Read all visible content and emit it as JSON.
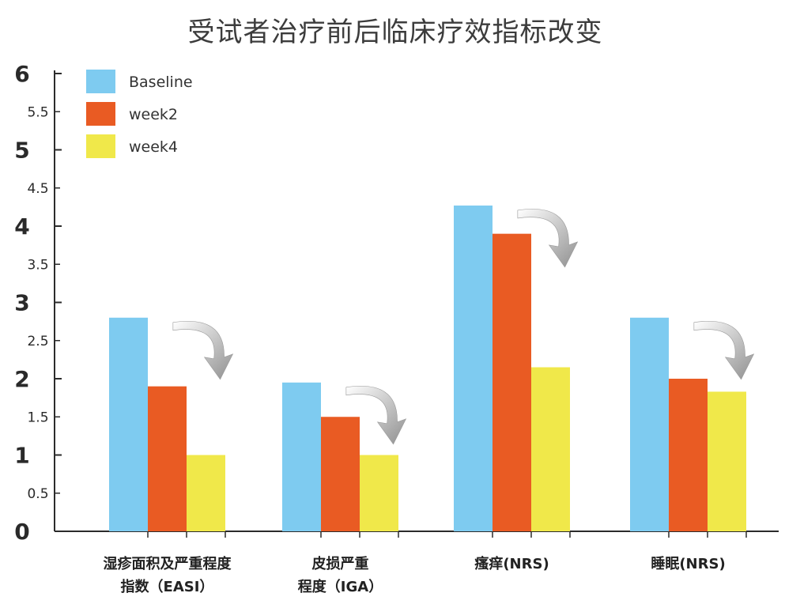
{
  "chart_data": {
    "type": "bar",
    "title": "受试者治疗前后临床疗效指标改变",
    "categories": [
      [
        "湿疹面积及严重程度",
        "指数（EASI）"
      ],
      [
        "皮损严重",
        "程度（IGA）"
      ],
      [
        "瘙痒(NRS)"
      ],
      [
        "睡眠(NRS)"
      ]
    ],
    "series": [
      {
        "name": "Baseline",
        "color": "#7ecbf0",
        "values": [
          2.8,
          1.95,
          4.27,
          2.8
        ]
      },
      {
        "name": "week2",
        "color": "#e95b23",
        "values": [
          1.9,
          1.5,
          3.9,
          2.0
        ]
      },
      {
        "name": "week4",
        "color": "#f0e84a",
        "values": [
          1.0,
          1.0,
          2.15,
          1.83
        ]
      }
    ],
    "ylim": [
      0,
      6
    ],
    "yticks_major": [
      "0",
      "1",
      "2",
      "3",
      "4",
      "5",
      "6"
    ],
    "yticks_minor": [
      "0.5",
      "1.5",
      "2.5",
      "3.5",
      "4.5",
      "5.5"
    ],
    "legend_position": "top-left",
    "annotations": "downward curved arrow above each category group",
    "arrow_color": "#9a9a9a",
    "axis_color": "#2b2b2b"
  }
}
